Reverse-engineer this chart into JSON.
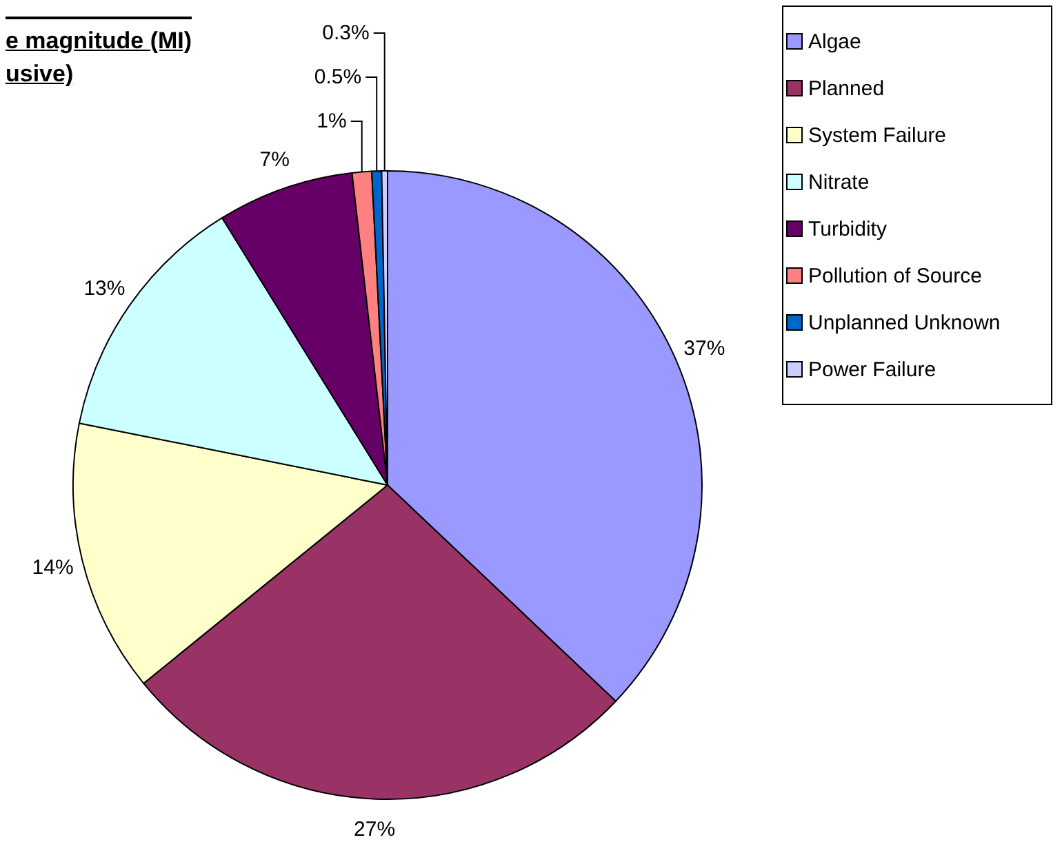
{
  "chart_data": {
    "type": "pie",
    "title": "e magnitude (MI)\nusive)",
    "categories": [
      "Algae",
      "Planned",
      "System Failure",
      "Nitrate",
      "Turbidity",
      "Pollution of Source",
      "Unplanned Unknown",
      "Power Failure"
    ],
    "values": [
      37,
      27,
      14,
      13,
      7,
      1,
      0.5,
      0.3
    ],
    "colors": [
      "#9999ff",
      "#993366",
      "#ffffcc",
      "#ccffff",
      "#660066",
      "#ff8080",
      "#0066cc",
      "#ccccff"
    ],
    "value_labels": [
      "37%",
      "27%",
      "14%",
      "13%",
      "7%",
      "1%",
      "0.5%",
      "0.3%"
    ],
    "legend": "top right"
  }
}
